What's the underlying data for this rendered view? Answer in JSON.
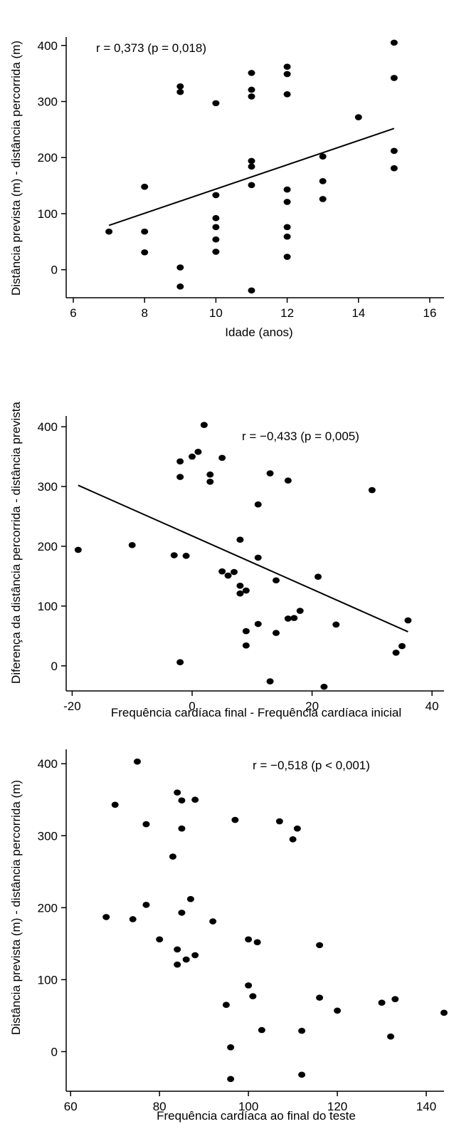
{
  "chart_data": [
    {
      "type": "scatter",
      "xlabel": "Idade (anos)",
      "ylabel": "Distância prevista (m) - distância percorrida (m)",
      "annotation": "r = 0,373 (p = 0,018)",
      "xlim": [
        5.8,
        16.4
      ],
      "ylim": [
        -50,
        415
      ],
      "xticks": [
        "6",
        "8",
        "10",
        "12",
        "14",
        "16"
      ],
      "yticks": [
        "0",
        "100",
        "200",
        "300",
        "400"
      ],
      "grid": false,
      "trendline": [
        [
          7,
          79
        ],
        [
          15,
          252
        ]
      ],
      "points": [
        [
          7,
          68
        ],
        [
          8,
          148
        ],
        [
          8,
          68
        ],
        [
          8,
          31
        ],
        [
          9,
          327
        ],
        [
          9,
          317
        ],
        [
          9,
          4
        ],
        [
          9,
          -30
        ],
        [
          10,
          297
        ],
        [
          10,
          133
        ],
        [
          10,
          92
        ],
        [
          10,
          76
        ],
        [
          10,
          54
        ],
        [
          10,
          32
        ],
        [
          11,
          351
        ],
        [
          11,
          321
        ],
        [
          11,
          309
        ],
        [
          11,
          194
        ],
        [
          11,
          184
        ],
        [
          11,
          151
        ],
        [
          11,
          -37
        ],
        [
          12,
          362
        ],
        [
          12,
          349
        ],
        [
          12,
          313
        ],
        [
          12,
          143
        ],
        [
          12,
          121
        ],
        [
          12,
          76
        ],
        [
          12,
          59
        ],
        [
          12,
          23
        ],
        [
          13,
          202
        ],
        [
          13,
          158
        ],
        [
          13,
          126
        ],
        [
          14,
          272
        ],
        [
          15,
          405
        ],
        [
          15,
          342
        ],
        [
          15,
          212
        ],
        [
          15,
          181
        ]
      ]
    },
    {
      "type": "scatter",
      "xlabel": "Frequência cardíaca final - Frequência cardíaca inicial",
      "ylabel": "Diferença da distância percorrida - distância prevista",
      "annotation": "r = −0,433 (p = 0,005)",
      "xlim": [
        -21,
        42
      ],
      "ylim": [
        -42,
        418
      ],
      "xticks": [
        "-20",
        "0",
        "20",
        "40"
      ],
      "yticks": [
        "0",
        "100",
        "200",
        "300",
        "400"
      ],
      "grid": false,
      "trendline": [
        [
          -19,
          302
        ],
        [
          36,
          57
        ]
      ],
      "points": [
        [
          -19,
          194
        ],
        [
          -10,
          202
        ],
        [
          -3,
          185
        ],
        [
          -1,
          184
        ],
        [
          -2,
          6
        ],
        [
          -2,
          342
        ],
        [
          -2,
          316
        ],
        [
          0,
          350
        ],
        [
          1,
          358
        ],
        [
          2,
          403
        ],
        [
          3,
          320
        ],
        [
          3,
          308
        ],
        [
          5,
          348
        ],
        [
          5,
          158
        ],
        [
          6,
          151
        ],
        [
          7,
          157
        ],
        [
          8,
          134
        ],
        [
          8,
          121
        ],
        [
          8,
          211
        ],
        [
          9,
          126
        ],
        [
          9,
          58
        ],
        [
          9,
          34
        ],
        [
          11,
          270
        ],
        [
          11,
          181
        ],
        [
          11,
          70
        ],
        [
          13,
          322
        ],
        [
          13,
          -26
        ],
        [
          14,
          143
        ],
        [
          14,
          55
        ],
        [
          16,
          310
        ],
        [
          16,
          79
        ],
        [
          17,
          80
        ],
        [
          18,
          92
        ],
        [
          21,
          149
        ],
        [
          22,
          -35
        ],
        [
          24,
          69
        ],
        [
          30,
          294
        ],
        [
          34,
          22
        ],
        [
          35,
          33
        ],
        [
          36,
          76
        ]
      ]
    },
    {
      "type": "scatter",
      "xlabel": "Frequência cardíaca ao final do teste",
      "ylabel": "Distância prevista (m) - distância percorrida (m)",
      "annotation": "r = −0,518 (p < 0,001)",
      "xlim": [
        59,
        144
      ],
      "ylim": [
        -55,
        420
      ],
      "xticks": [
        "60",
        "80",
        "100",
        "120",
        "140"
      ],
      "yticks": [
        "0",
        "100",
        "200",
        "300",
        "400"
      ],
      "grid": false,
      "points": [
        [
          68,
          187
        ],
        [
          70,
          343
        ],
        [
          74,
          184
        ],
        [
          75,
          403
        ],
        [
          77,
          316
        ],
        [
          77,
          204
        ],
        [
          80,
          156
        ],
        [
          83,
          271
        ],
        [
          84,
          360
        ],
        [
          84,
          142
        ],
        [
          84,
          121
        ],
        [
          85,
          349
        ],
        [
          85,
          310
        ],
        [
          85,
          193
        ],
        [
          86,
          128
        ],
        [
          87,
          212
        ],
        [
          88,
          350
        ],
        [
          88,
          134
        ],
        [
          92,
          181
        ],
        [
          95,
          65
        ],
        [
          96,
          6
        ],
        [
          96,
          -38
        ],
        [
          97,
          322
        ],
        [
          100,
          156
        ],
        [
          100,
          92
        ],
        [
          101,
          77
        ],
        [
          102,
          152
        ],
        [
          103,
          30
        ],
        [
          107,
          320
        ],
        [
          110,
          295
        ],
        [
          111,
          310
        ],
        [
          112,
          29
        ],
        [
          112,
          -32
        ],
        [
          116,
          148
        ],
        [
          116,
          75
        ],
        [
          120,
          57
        ],
        [
          130,
          68
        ],
        [
          132,
          21
        ],
        [
          133,
          73
        ],
        [
          144,
          54
        ]
      ]
    }
  ]
}
